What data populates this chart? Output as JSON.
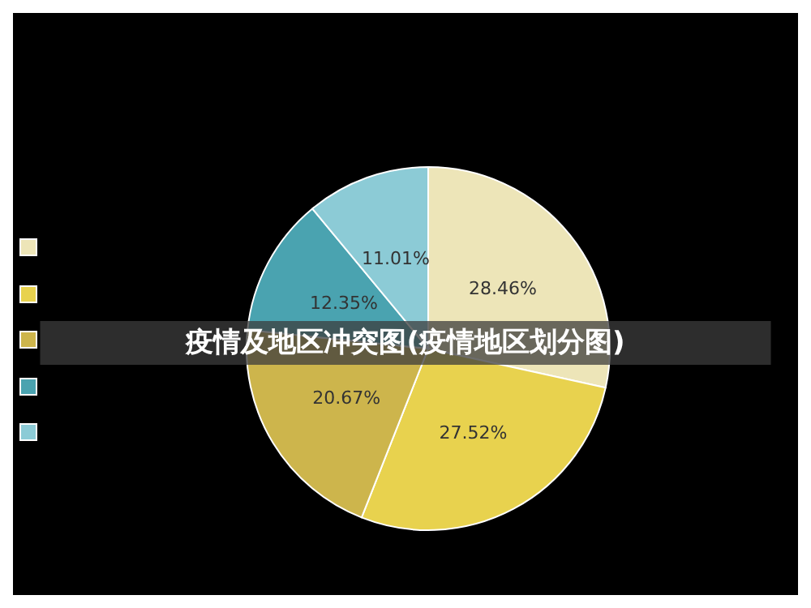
{
  "chart_data": {
    "type": "pie",
    "title": "疫情及地区冲突图(疫情地区划分图)",
    "categories": [
      null,
      null,
      null,
      null,
      null
    ],
    "values": [
      28.46,
      27.52,
      20.67,
      12.35,
      11.01
    ],
    "value_labels": [
      "28.46%",
      "27.52%",
      "20.67%",
      "12.35%",
      "11.01%"
    ],
    "colors": [
      "#ede5b8",
      "#e8d24e",
      "#cdb54c",
      "#4aa3b0",
      "#8ccbd6"
    ]
  }
}
